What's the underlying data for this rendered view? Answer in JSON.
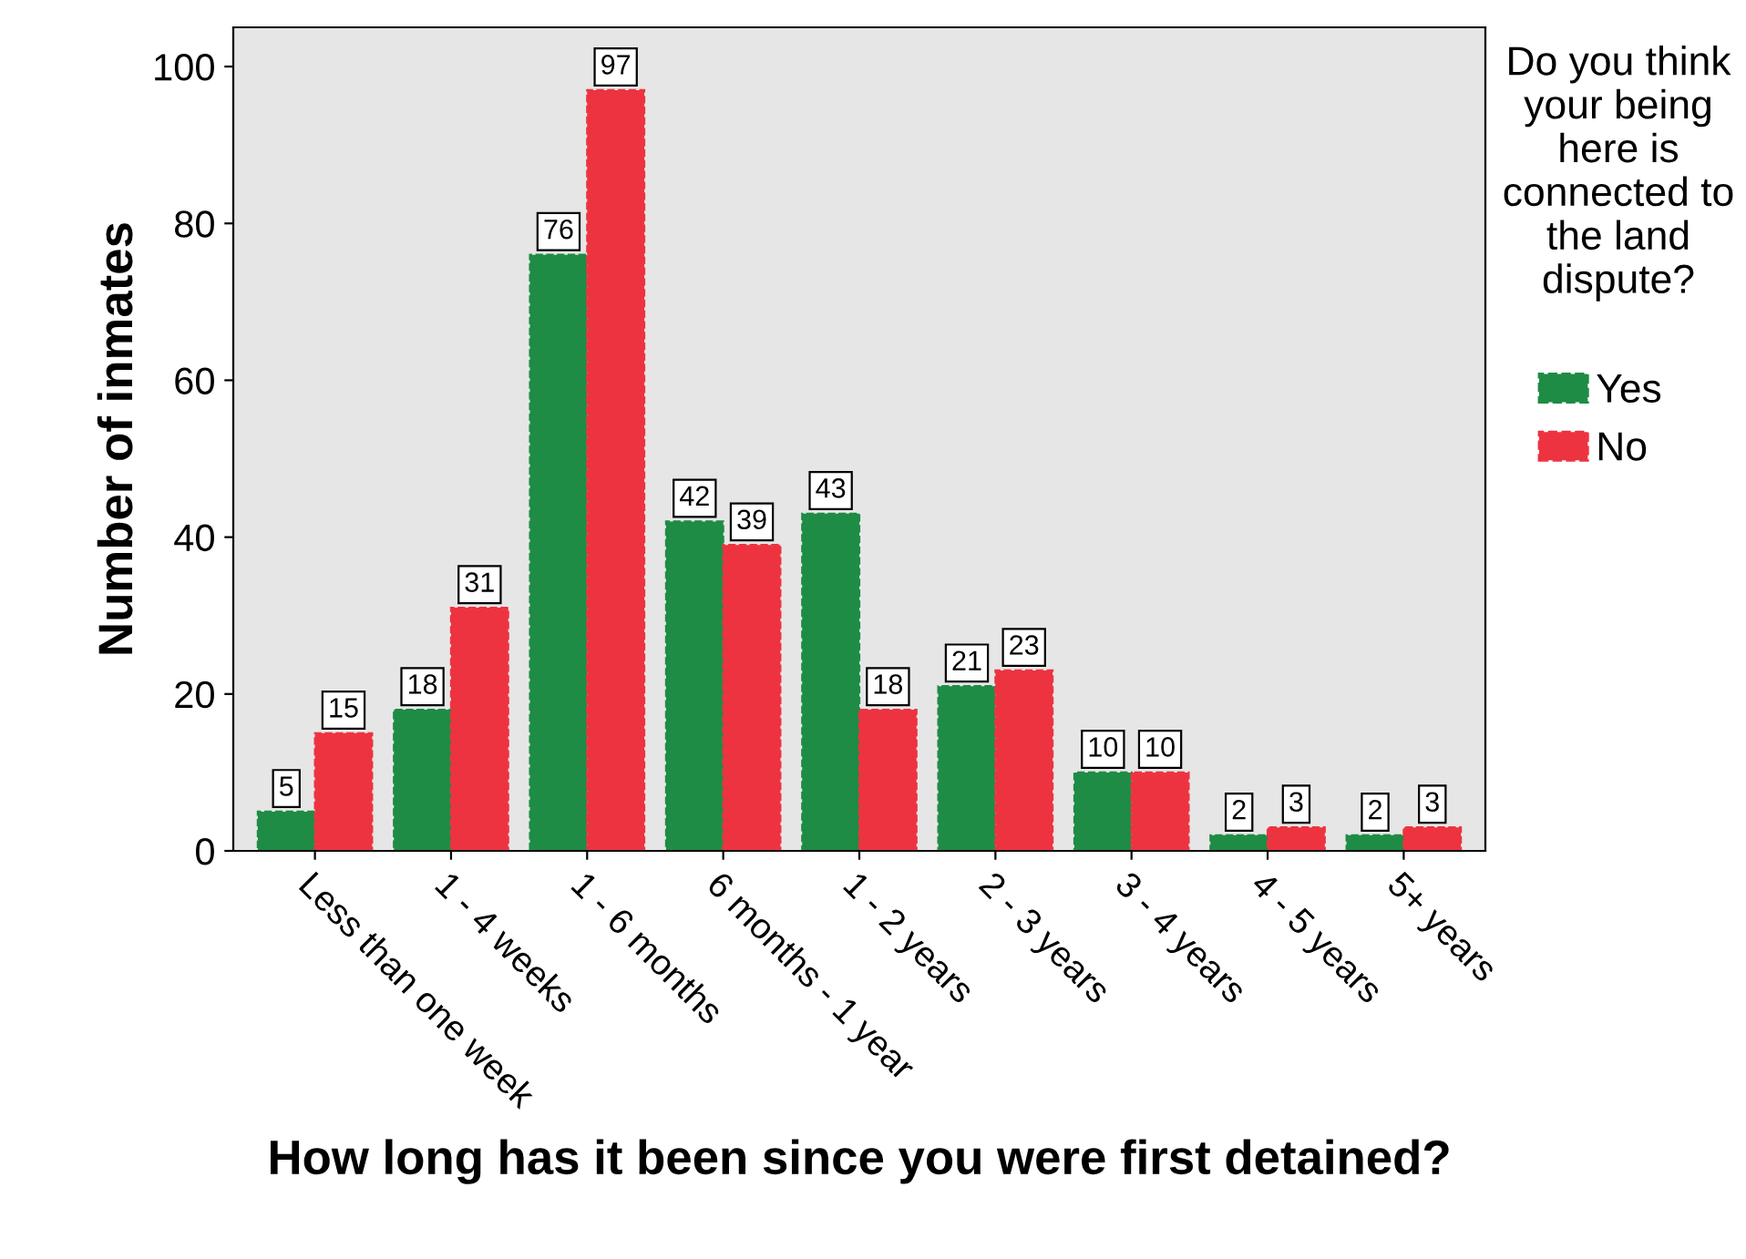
{
  "chart_data": {
    "type": "bar",
    "xlabel": "How long has it been since you were first detained?",
    "ylabel": "Number of inmates",
    "legend_title": "Do you think your being here is connected to the land dispute?",
    "categories": [
      "Less than one week",
      "1 - 4 weeks",
      "1 - 6 months",
      "6 months - 1 year",
      "1 - 2 years",
      "2 - 3 years",
      "3 - 4 years",
      "4 - 5 years",
      "5+ years"
    ],
    "series": [
      {
        "name": "Yes",
        "color": "#1e8c45",
        "values": [
          5,
          18,
          76,
          42,
          43,
          21,
          10,
          2,
          2
        ]
      },
      {
        "name": "No",
        "color": "#ee3340",
        "values": [
          15,
          31,
          97,
          39,
          18,
          23,
          10,
          3,
          3
        ]
      }
    ],
    "ylim": [
      0,
      105
    ],
    "yticks": [
      0,
      20,
      40,
      60,
      80,
      100
    ],
    "data_labels": true,
    "legend": "right",
    "grid": false
  }
}
